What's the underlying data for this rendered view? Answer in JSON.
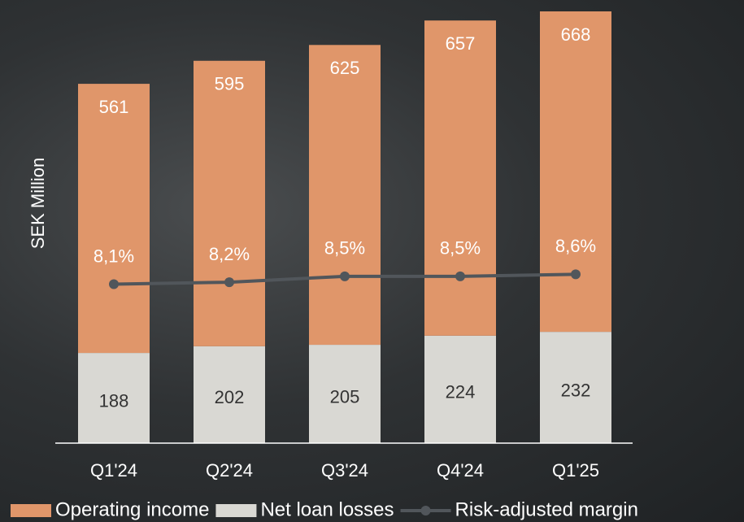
{
  "chart_data": {
    "type": "bar",
    "stacked": true,
    "y_label": "SEK Million",
    "categories": [
      "Q1'24",
      "Q2'24",
      "Q3'24",
      "Q4'24",
      "Q1'25"
    ],
    "series": [
      {
        "name": "Operating income",
        "type": "bar",
        "color": "#e0966a",
        "values": [
          561,
          595,
          625,
          657,
          668
        ]
      },
      {
        "name": "Net loan losses",
        "type": "bar",
        "color": "#d9d8d3",
        "values": [
          188,
          202,
          205,
          224,
          232
        ]
      },
      {
        "name": "Risk-adjusted margin",
        "type": "line",
        "axis": "y2",
        "color": "#51565b",
        "values": [
          8.1,
          8.2,
          8.5,
          8.5,
          8.6
        ],
        "value_labels": [
          "8,1%",
          "8,2%",
          "8,5%",
          "8,5%",
          "8,6%"
        ]
      }
    ],
    "ylim": [
      0,
      900
    ],
    "y2lim": [
      0,
      22
    ],
    "legend": "bottom"
  }
}
